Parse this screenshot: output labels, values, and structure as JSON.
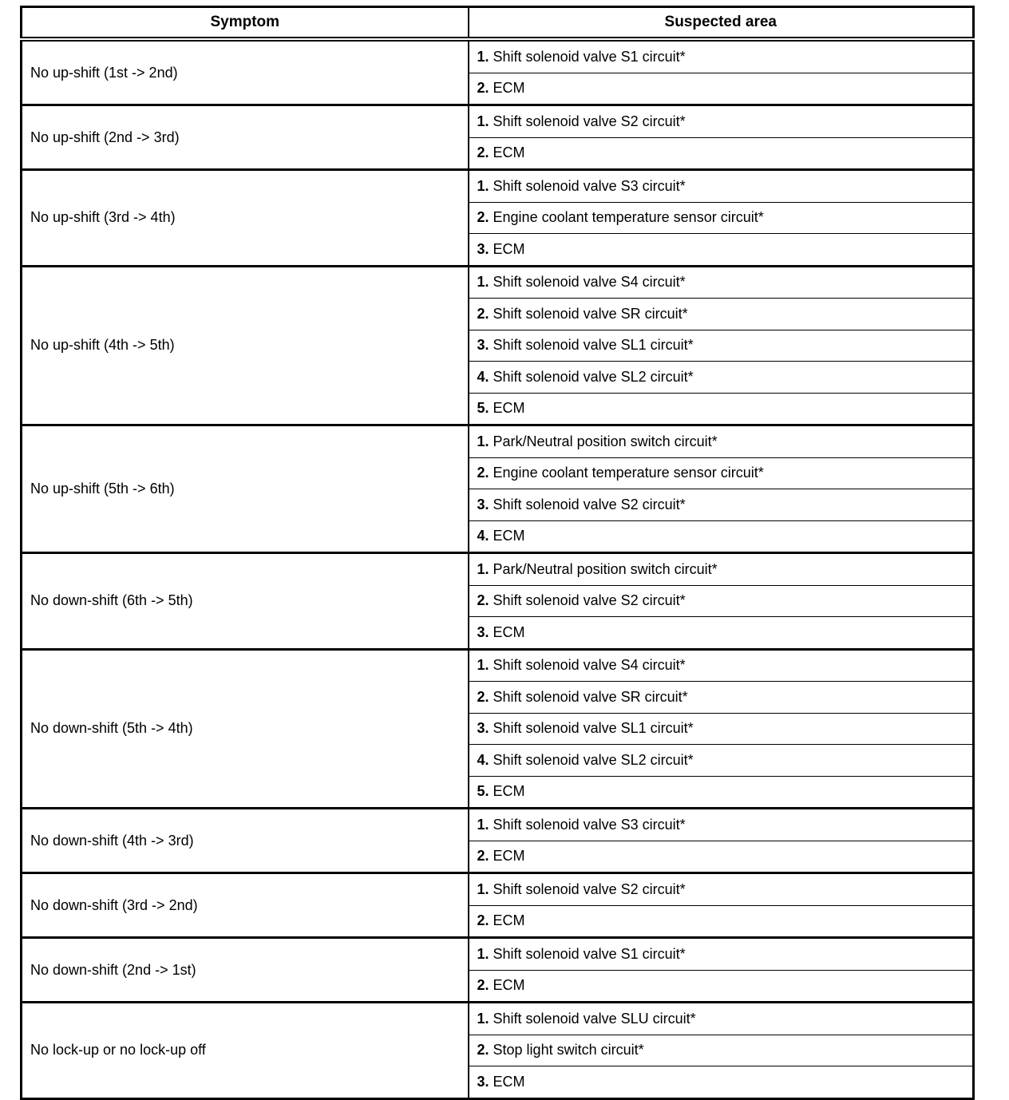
{
  "table": {
    "headers": {
      "symptom": "Symptom",
      "suspected_area": "Suspected area"
    },
    "groups": [
      {
        "symptom": "No up-shift (1st -> 2nd)",
        "areas": [
          {
            "num": "1.",
            "label": "Shift solenoid valve S1 circuit*"
          },
          {
            "num": "2.",
            "label": "ECM"
          }
        ]
      },
      {
        "symptom": "No up-shift (2nd -> 3rd)",
        "areas": [
          {
            "num": "1.",
            "label": "Shift solenoid valve S2 circuit*"
          },
          {
            "num": "2.",
            "label": "ECM"
          }
        ]
      },
      {
        "symptom": "No up-shift (3rd -> 4th)",
        "areas": [
          {
            "num": "1.",
            "label": "Shift solenoid valve S3 circuit*"
          },
          {
            "num": "2.",
            "label": "Engine coolant temperature sensor circuit*"
          },
          {
            "num": "3.",
            "label": "ECM"
          }
        ]
      },
      {
        "symptom": "No up-shift (4th -> 5th)",
        "areas": [
          {
            "num": "1.",
            "label": "Shift solenoid valve S4 circuit*"
          },
          {
            "num": "2.",
            "label": "Shift solenoid valve SR circuit*"
          },
          {
            "num": "3.",
            "label": "Shift solenoid valve SL1 circuit*"
          },
          {
            "num": "4.",
            "label": "Shift solenoid valve SL2 circuit*"
          },
          {
            "num": "5.",
            "label": "ECM"
          }
        ]
      },
      {
        "symptom": "No up-shift (5th -> 6th)",
        "areas": [
          {
            "num": "1.",
            "label": "Park/Neutral position switch circuit*"
          },
          {
            "num": "2.",
            "label": "Engine coolant temperature sensor circuit*"
          },
          {
            "num": "3.",
            "label": "Shift solenoid valve S2 circuit*"
          },
          {
            "num": "4.",
            "label": "ECM"
          }
        ]
      },
      {
        "symptom": "No down-shift (6th -> 5th)",
        "areas": [
          {
            "num": "1.",
            "label": "Park/Neutral position switch circuit*"
          },
          {
            "num": "2.",
            "label": "Shift solenoid valve S2 circuit*"
          },
          {
            "num": "3.",
            "label": "ECM"
          }
        ]
      },
      {
        "symptom": "No down-shift (5th -> 4th)",
        "areas": [
          {
            "num": "1.",
            "label": "Shift solenoid valve S4 circuit*"
          },
          {
            "num": "2.",
            "label": "Shift solenoid valve SR circuit*"
          },
          {
            "num": "3.",
            "label": "Shift solenoid valve SL1 circuit*"
          },
          {
            "num": "4.",
            "label": "Shift solenoid valve SL2 circuit*"
          },
          {
            "num": "5.",
            "label": "ECM"
          }
        ]
      },
      {
        "symptom": "No down-shift (4th -> 3rd)",
        "areas": [
          {
            "num": "1.",
            "label": "Shift solenoid valve S3 circuit*"
          },
          {
            "num": "2.",
            "label": "ECM"
          }
        ]
      },
      {
        "symptom": "No down-shift (3rd -> 2nd)",
        "areas": [
          {
            "num": "1.",
            "label": "Shift solenoid valve S2 circuit*"
          },
          {
            "num": "2.",
            "label": "ECM"
          }
        ]
      },
      {
        "symptom": "No down-shift (2nd -> 1st)",
        "areas": [
          {
            "num": "1.",
            "label": "Shift solenoid valve S1 circuit*"
          },
          {
            "num": "2.",
            "label": "ECM"
          }
        ]
      },
      {
        "symptom": "No lock-up or no lock-up off",
        "areas": [
          {
            "num": "1.",
            "label": "Shift solenoid valve SLU circuit*"
          },
          {
            "num": "2.",
            "label": "Stop light switch circuit*"
          },
          {
            "num": "3.",
            "label": "ECM"
          }
        ]
      }
    ]
  }
}
